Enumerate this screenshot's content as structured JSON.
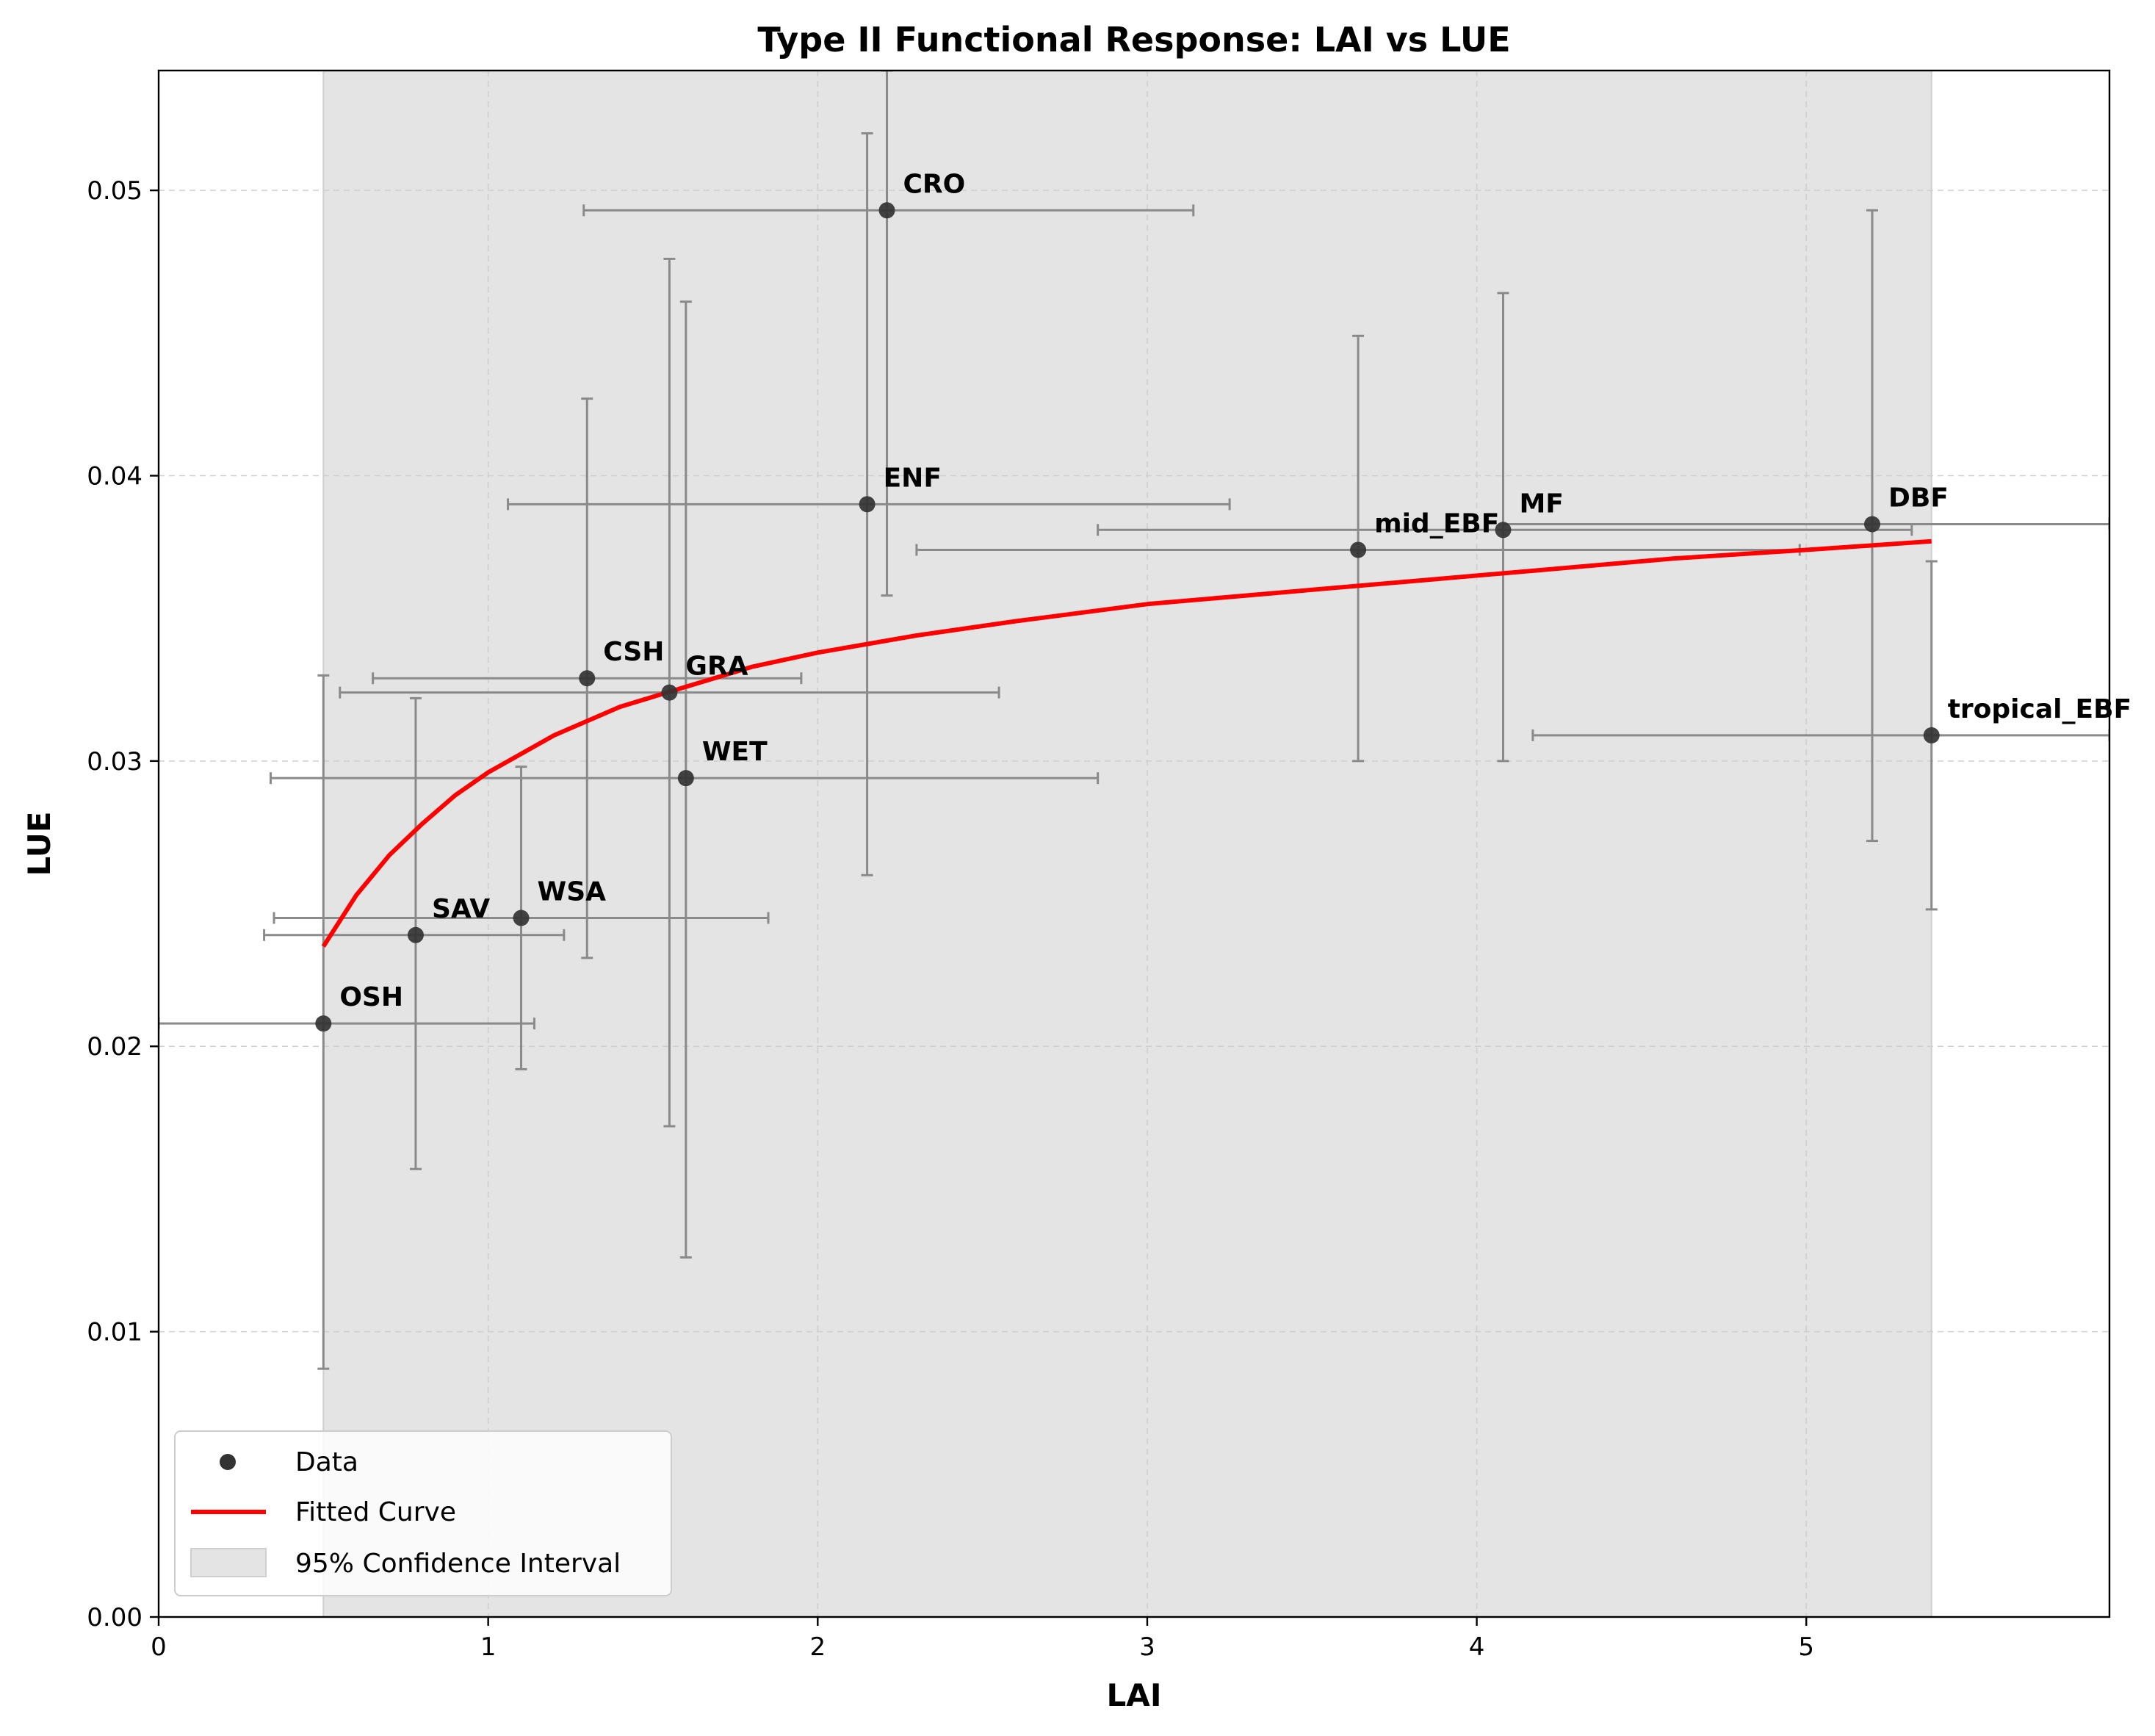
{
  "chart_data": {
    "type": "scatter",
    "title": "Type II Functional Response: LAI vs LUE",
    "xlabel": "LAI",
    "ylabel": "LUE",
    "xlim": [
      0,
      5.92
    ],
    "ylim": [
      0,
      0.0542
    ],
    "xticks": [
      0,
      1,
      2,
      3,
      4,
      5
    ],
    "xtick_labels": [
      "0",
      "1",
      "2",
      "3",
      "4",
      "5"
    ],
    "yticks": [
      0,
      0.01,
      0.02,
      0.03,
      0.04,
      0.05
    ],
    "ytick_labels": [
      "0.00",
      "0.01",
      "0.02",
      "0.03",
      "0.04",
      "0.05"
    ],
    "grid": true,
    "legend_position": "lower-left",
    "legend": [
      "Data",
      "Fitted Curve",
      "95% Confidence Interval"
    ],
    "confidence_interval_x": [
      0.5,
      5.38
    ],
    "points": [
      {
        "label": "OSH",
        "x": 0.5,
        "y": 0.0208,
        "xerr_low": 0.0,
        "xerr_high": 1.14,
        "yerr_low": 0.0087,
        "yerr_high": 0.033
      },
      {
        "label": "SAV",
        "x": 0.78,
        "y": 0.0239,
        "xerr_low": 0.32,
        "xerr_high": 1.23,
        "yerr_low": 0.0157,
        "yerr_high": 0.0322
      },
      {
        "label": "WSA",
        "x": 1.1,
        "y": 0.0245,
        "xerr_low": 0.35,
        "xerr_high": 1.85,
        "yerr_low": 0.0192,
        "yerr_high": 0.0298
      },
      {
        "label": "CSH",
        "x": 1.3,
        "y": 0.0329,
        "xerr_low": 0.65,
        "xerr_high": 1.95,
        "yerr_low": 0.0231,
        "yerr_high": 0.0427
      },
      {
        "label": "GRA",
        "x": 1.55,
        "y": 0.0324,
        "xerr_low": 0.55,
        "xerr_high": 2.55,
        "yerr_low": 0.0172,
        "yerr_high": 0.0476
      },
      {
        "label": "WET",
        "x": 1.6,
        "y": 0.0294,
        "xerr_low": 0.34,
        "xerr_high": 2.85,
        "yerr_low": 0.0126,
        "yerr_high": 0.0461
      },
      {
        "label": "ENF",
        "x": 2.15,
        "y": 0.039,
        "xerr_low": 1.06,
        "xerr_high": 3.25,
        "yerr_low": 0.026,
        "yerr_high": 0.052
      },
      {
        "label": "CRO",
        "x": 2.21,
        "y": 0.0493,
        "xerr_low": 1.29,
        "xerr_high": 3.14,
        "yerr_low": 0.0358,
        "yerr_high": 0.0542
      },
      {
        "label": "mid_EBF",
        "x": 3.64,
        "y": 0.0374,
        "xerr_low": 2.3,
        "xerr_high": 4.98,
        "yerr_low": 0.03,
        "yerr_high": 0.0449
      },
      {
        "label": "MF",
        "x": 4.08,
        "y": 0.0381,
        "xerr_low": 2.85,
        "xerr_high": 5.32,
        "yerr_low": 0.03,
        "yerr_high": 0.0464
      },
      {
        "label": "DBF",
        "x": 5.2,
        "y": 0.0383,
        "xerr_low": 4.08,
        "xerr_high": 5.92,
        "yerr_low": 0.0272,
        "yerr_high": 0.0493
      },
      {
        "label": "tropical_EBF",
        "x": 5.38,
        "y": 0.0309,
        "xerr_low": 4.17,
        "xerr_high": 5.92,
        "yerr_low": 0.0248,
        "yerr_high": 0.037
      }
    ],
    "fitted_curve": {
      "x": [
        0.5,
        0.6,
        0.7,
        0.8,
        0.9,
        1.0,
        1.2,
        1.4,
        1.6,
        1.8,
        2.0,
        2.3,
        2.6,
        3.0,
        3.4,
        3.8,
        4.2,
        4.6,
        5.0,
        5.38
      ],
      "y": [
        0.0235,
        0.0253,
        0.0267,
        0.0278,
        0.0288,
        0.0296,
        0.0309,
        0.0319,
        0.0326,
        0.0333,
        0.0338,
        0.0344,
        0.0349,
        0.0355,
        0.0359,
        0.0363,
        0.0367,
        0.0371,
        0.0374,
        0.0377
      ]
    },
    "colors": {
      "point": "#333333",
      "curve": "#ff0000",
      "confidence_band": "#e4e4e4",
      "error_bar": "#8a8a8a",
      "grid": "#cfcfcf"
    }
  }
}
